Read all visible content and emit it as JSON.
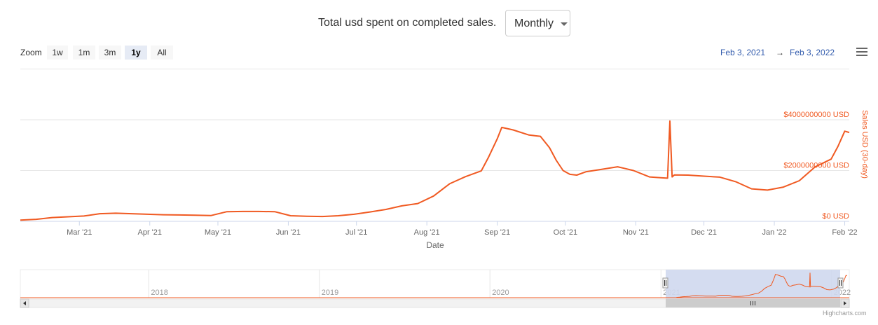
{
  "header": {
    "title": "Total usd spent on completed sales.",
    "period_select": {
      "value": "Monthly"
    }
  },
  "range_selector": {
    "zoom_label": "Zoom",
    "buttons": [
      {
        "label": "1w",
        "active": false
      },
      {
        "label": "1m",
        "active": false
      },
      {
        "label": "3m",
        "active": false
      },
      {
        "label": "1y",
        "active": true
      },
      {
        "label": "All",
        "active": false
      }
    ],
    "from": "Feb 3, 2021",
    "arrow": "→",
    "to": "Feb 3, 2022"
  },
  "colors": {
    "series": "#f05a22",
    "axis_title": "#f05a22",
    "navigator_mask": "#cfd8ee"
  },
  "credits": "Highcharts.com",
  "chart_data": {
    "type": "line",
    "title": "",
    "xlabel": "Date",
    "ylabel": "Sales USD (30-day)",
    "ylim": [
      0,
      4000000000
    ],
    "y_ticks": [
      {
        "value": 0,
        "label": "$0 USD"
      },
      {
        "value": 2000000000,
        "label": "$2000000000 USD"
      },
      {
        "value": 4000000000,
        "label": "$4000000000 USD"
      }
    ],
    "x_range": [
      "2021-02-03",
      "2022-02-03"
    ],
    "x_ticks": [
      {
        "date": "2021-03-01",
        "label": "Mar '21"
      },
      {
        "date": "2021-04-01",
        "label": "Apr '21"
      },
      {
        "date": "2021-05-01",
        "label": "May '21"
      },
      {
        "date": "2021-06-01",
        "label": "Jun '21"
      },
      {
        "date": "2021-07-01",
        "label": "Jul '21"
      },
      {
        "date": "2021-08-01",
        "label": "Aug '21"
      },
      {
        "date": "2021-09-01",
        "label": "Sep '21"
      },
      {
        "date": "2021-10-01",
        "label": "Oct '21"
      },
      {
        "date": "2021-11-01",
        "label": "Nov '21"
      },
      {
        "date": "2021-12-01",
        "label": "Dec '21"
      },
      {
        "date": "2022-01-01",
        "label": "Jan '22"
      },
      {
        "date": "2022-02-01",
        "label": "Feb '22"
      }
    ],
    "grid": true,
    "series": [
      {
        "x": [
          "2021-02-03",
          "2021-02-10",
          "2021-02-17",
          "2021-02-24",
          "2021-03-03",
          "2021-03-10",
          "2021-03-17",
          "2021-03-24",
          "2021-03-31",
          "2021-04-07",
          "2021-04-14",
          "2021-04-21",
          "2021-04-28",
          "2021-05-05",
          "2021-05-12",
          "2021-05-19",
          "2021-05-26",
          "2021-06-02",
          "2021-06-09",
          "2021-06-16",
          "2021-06-23",
          "2021-06-30",
          "2021-07-07",
          "2021-07-14",
          "2021-07-21",
          "2021-07-28",
          "2021-08-04",
          "2021-08-11",
          "2021-08-18",
          "2021-08-25",
          "2021-08-28",
          "2021-09-01",
          "2021-09-03",
          "2021-09-08",
          "2021-09-15",
          "2021-09-20",
          "2021-09-24",
          "2021-09-27",
          "2021-09-30",
          "2021-10-03",
          "2021-10-06",
          "2021-10-10",
          "2021-10-17",
          "2021-10-24",
          "2021-10-31",
          "2021-11-07",
          "2021-11-12",
          "2021-11-15",
          "2021-11-16",
          "2021-11-17",
          "2021-11-18",
          "2021-11-24",
          "2021-12-01",
          "2021-12-08",
          "2021-12-15",
          "2021-12-22",
          "2021-12-29",
          "2022-01-05",
          "2022-01-12",
          "2022-01-19",
          "2022-01-26",
          "2022-01-29",
          "2022-02-01",
          "2022-02-03"
        ],
        "y": [
          50000000,
          80000000,
          150000000,
          180000000,
          210000000,
          300000000,
          320000000,
          300000000,
          280000000,
          260000000,
          250000000,
          240000000,
          230000000,
          380000000,
          390000000,
          390000000,
          380000000,
          220000000,
          200000000,
          190000000,
          220000000,
          280000000,
          370000000,
          470000000,
          610000000,
          700000000,
          1000000000,
          1480000000,
          1760000000,
          1990000000,
          2500000000,
          3250000000,
          3700000000,
          3600000000,
          3400000000,
          3350000000,
          2900000000,
          2400000000,
          2000000000,
          1850000000,
          1820000000,
          1950000000,
          2050000000,
          2150000000,
          2000000000,
          1750000000,
          1720000000,
          1700000000,
          3950000000,
          1750000000,
          1830000000,
          1820000000,
          1780000000,
          1740000000,
          1560000000,
          1280000000,
          1230000000,
          1350000000,
          1600000000,
          2150000000,
          2450000000,
          2950000000,
          3550000000,
          3500000000
        ]
      }
    ],
    "navigator": {
      "x_labels": [
        "2018",
        "2019",
        "2020",
        "2021",
        "2022"
      ],
      "selected_range": [
        "2021-02-03",
        "2022-02-03"
      ]
    }
  }
}
